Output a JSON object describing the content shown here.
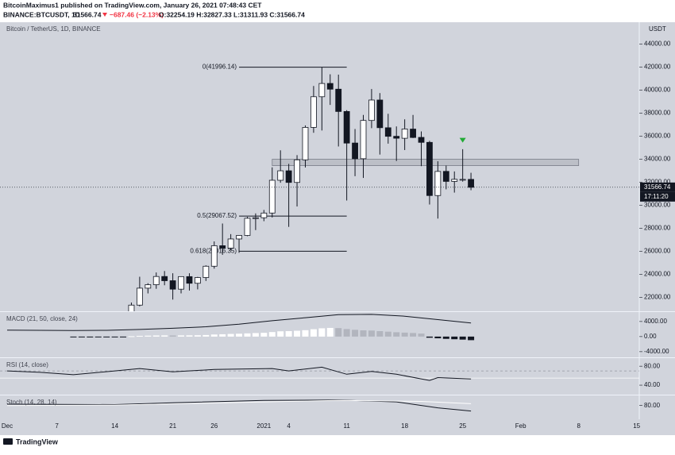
{
  "header": {
    "byline": "BitcoinMaximus1 published on TradingView.com, January 26, 2021 07:48:43 CET",
    "symbol": "BINANCE:BTCUSDT, 1D",
    "last": "31566.74",
    "change": "−687.46 (−2.13%)",
    "ohlc": "O:32254.19 H:32827.33 L:31311.93 C:31566.74"
  },
  "footer": {
    "brand": "TradingView"
  },
  "chart_data": [
    {
      "type": "candlestick",
      "title": "Bitcoin / TetherUS, 1D, BINANCE",
      "y_unit": "USDT",
      "up_color": "#ffffff",
      "down_color": "#131722",
      "x": [
        "2020-12-16",
        "2020-12-17",
        "2020-12-18",
        "2020-12-19",
        "2020-12-20",
        "2020-12-21",
        "2020-12-22",
        "2020-12-23",
        "2020-12-24",
        "2020-12-25",
        "2020-12-26",
        "2020-12-27",
        "2020-12-28",
        "2020-12-29",
        "2020-12-30",
        "2020-12-31",
        "2021-01-01",
        "2021-01-02",
        "2021-01-03",
        "2021-01-04",
        "2021-01-05",
        "2021-01-06",
        "2021-01-07",
        "2021-01-08",
        "2021-01-09",
        "2021-01-10",
        "2021-01-11",
        "2021-01-12",
        "2021-01-13",
        "2021-01-14",
        "2021-01-15",
        "2021-01-16",
        "2021-01-17",
        "2021-01-18",
        "2021-01-19",
        "2021-01-20",
        "2021-01-21",
        "2021-01-22",
        "2021-01-23",
        "2021-01-24",
        "2021-01-25",
        "2021-01-26"
      ],
      "open": [
        19426,
        21335,
        22808,
        23107,
        23821,
        23455,
        22719,
        23810,
        23232,
        23729,
        24712,
        26493,
        26281,
        27079,
        27385,
        28875,
        28923,
        29331,
        32176,
        33000,
        31989,
        33950,
        36769,
        39432,
        40586,
        40088,
        38150,
        35410,
        34049,
        37371,
        39145,
        36737,
        35994,
        35824,
        36622,
        35901,
        35468,
        30851,
        32950,
        32078,
        32254,
        32254.19
      ],
      "high": [
        21560,
        23800,
        23238,
        24171,
        24295,
        24102,
        23837,
        24100,
        23789,
        24789,
        26867,
        28422,
        27500,
        27410,
        28999,
        29300,
        29600,
        33300,
        34778,
        33600,
        34360,
        36939,
        40365,
        41996.14,
        41380,
        41350,
        38264,
        36628,
        37850,
        40100,
        39747,
        37950,
        36852,
        37469,
        37850,
        36415,
        35600,
        33826,
        33456,
        32944,
        34875,
        32827.33
      ],
      "low": [
        19278,
        21230,
        22350,
        22750,
        23060,
        21815,
        22353,
        22600,
        22703,
        23433,
        24500,
        25700,
        26101,
        25880,
        27320,
        27850,
        28624,
        28946,
        31962,
        28130,
        29900,
        33288,
        36300,
        36500,
        38720,
        35111,
        30420,
        32531,
        32380,
        36701,
        34408,
        35357,
        33850,
        34800,
        35844,
        33400,
        30071,
        28850,
        31390,
        31106,
        32059,
        31311.93
      ],
      "close": [
        21335,
        22808,
        23107,
        23821,
        23455,
        22719,
        23810,
        23232,
        23729,
        24712,
        26493,
        26281,
        27079,
        27385,
        28875,
        28923,
        29331,
        32178,
        33000,
        31988,
        33949,
        36769,
        39432,
        40582,
        40088,
        38150,
        35404,
        34051,
        37371,
        39144,
        36742,
        35994,
        35828,
        36631,
        35891,
        35468,
        30850,
        32945,
        32078,
        32259,
        32254,
        31566.74
      ],
      "ylim": [
        20800,
        45900
      ],
      "yticks": [
        {
          "value": 22000,
          "label": "22000.00"
        },
        {
          "value": 24000,
          "label": "24000.00"
        },
        {
          "value": 26000,
          "label": "26000.00"
        },
        {
          "value": 28000,
          "label": "28000.00"
        },
        {
          "value": 30000,
          "label": "30000.00"
        },
        {
          "value": 32000,
          "label": "32000.00"
        },
        {
          "value": 34000,
          "label": "34000.00"
        },
        {
          "value": 36000,
          "label": "36000.00"
        },
        {
          "value": 38000,
          "label": "38000.00"
        },
        {
          "value": 40000,
          "label": "40000.00"
        },
        {
          "value": 42000,
          "label": "42000.00"
        },
        {
          "value": 44000,
          "label": "44000.00"
        }
      ],
      "last_price": {
        "value": 31566.74,
        "label": "31566.74"
      },
      "countdown": "17:11:20",
      "fib_x": [
        "2020-12-29",
        "2021-01-11"
      ],
      "fib_levels": [
        {
          "value": 41996.14,
          "label": "0(41996.14)"
        },
        {
          "value": 29067.52,
          "label": "0.5(29067.52)"
        },
        {
          "value": 26016.35,
          "label": "0.618(26016.35)"
        }
      ],
      "zone": {
        "x": [
          "2021-01-02",
          "2021-02-08"
        ],
        "y": [
          33450,
          34000
        ],
        "color": "#9598a1"
      },
      "signal": {
        "x": "2021-01-25",
        "value": 35650,
        "color": "#22ab36"
      },
      "xticks": [
        {
          "value": "2020-12-01",
          "label": "Dec"
        },
        {
          "value": "2020-12-07",
          "label": "7"
        },
        {
          "value": "2020-12-14",
          "label": "14"
        },
        {
          "value": "2020-12-21",
          "label": "21"
        },
        {
          "value": "2020-12-26",
          "label": "26"
        },
        {
          "value": "2021-01-01",
          "label": "2021"
        },
        {
          "value": "2021-01-04",
          "label": "4"
        },
        {
          "value": "2021-01-11",
          "label": "11"
        },
        {
          "value": "2021-01-18",
          "label": "18"
        },
        {
          "value": "2021-01-25",
          "label": "25"
        },
        {
          "value": "2021-02-01",
          "label": "Feb"
        },
        {
          "value": "2021-02-08",
          "label": "8"
        },
        {
          "value": "2021-02-15",
          "label": "15"
        }
      ]
    },
    {
      "type": "macd",
      "title": "MACD (21, 50, close, 24)",
      "ylim": [
        -5500,
        6500
      ],
      "yticks": [
        {
          "value": 4000,
          "label": "4000.00"
        },
        {
          "value": 0,
          "label": "0.00"
        },
        {
          "value": -4000,
          "label": "-4000.00"
        }
      ],
      "histogram": {
        "colors": {
          "rising": "#ffffff",
          "falling": "#b2b5be",
          "negative": "#131722"
        },
        "x": [
          "2020-12-09",
          "2020-12-10",
          "2020-12-11",
          "2020-12-12",
          "2020-12-13",
          "2020-12-14",
          "2020-12-15",
          "2020-12-16",
          "2020-12-17",
          "2020-12-18",
          "2020-12-19",
          "2020-12-20",
          "2020-12-21",
          "2020-12-22",
          "2020-12-23",
          "2020-12-24",
          "2020-12-25",
          "2020-12-26",
          "2020-12-27",
          "2020-12-28",
          "2020-12-29",
          "2020-12-30",
          "2020-12-31",
          "2021-01-01",
          "2021-01-02",
          "2021-01-03",
          "2021-01-04",
          "2021-01-05",
          "2021-01-06",
          "2021-01-07",
          "2021-01-08",
          "2021-01-09",
          "2021-01-10",
          "2021-01-11",
          "2021-01-12",
          "2021-01-13",
          "2021-01-14",
          "2021-01-15",
          "2021-01-16",
          "2021-01-17",
          "2021-01-18",
          "2021-01-19",
          "2021-01-20",
          "2021-01-21",
          "2021-01-22",
          "2021-01-23",
          "2021-01-24",
          "2021-01-25",
          "2021-01-26"
        ],
        "values": [
          -150,
          -200,
          -220,
          -200,
          -180,
          -150,
          -80,
          100,
          200,
          250,
          300,
          320,
          300,
          320,
          330,
          360,
          420,
          550,
          620,
          700,
          760,
          850,
          930,
          1000,
          1200,
          1400,
          1450,
          1550,
          1700,
          1950,
          2200,
          2300,
          2250,
          2000,
          1800,
          1650,
          1600,
          1450,
          1300,
          1150,
          1050,
          950,
          800,
          -300,
          -450,
          -600,
          -700,
          -800,
          -950
        ]
      },
      "series": [
        {
          "color": "#131722",
          "x": [
            "2020-12-01",
            "2020-12-05",
            "2020-12-09",
            "2020-12-13",
            "2020-12-17",
            "2020-12-21",
            "2020-12-25",
            "2020-12-29",
            "2021-01-02",
            "2021-01-06",
            "2021-01-10",
            "2021-01-14",
            "2021-01-18",
            "2021-01-22",
            "2021-01-26"
          ],
          "values": [
            1700,
            1650,
            1600,
            1650,
            1900,
            2200,
            2600,
            3300,
            4200,
            5000,
            5800,
            5900,
            5400,
            4500,
            3600
          ]
        }
      ]
    },
    {
      "type": "rsi",
      "title": "RSI (14, close)",
      "ylim": [
        20,
        97
      ],
      "yticks": [
        {
          "value": 80,
          "label": "80.00"
        },
        {
          "value": 40,
          "label": "40.00"
        }
      ],
      "levels": [
        70,
        55
      ],
      "series": [
        {
          "color": "#131722",
          "x": [
            "2020-12-01",
            "2020-12-05",
            "2020-12-09",
            "2020-12-14",
            "2020-12-17",
            "2020-12-21",
            "2020-12-26",
            "2021-01-02",
            "2021-01-04",
            "2021-01-08",
            "2021-01-11",
            "2021-01-14",
            "2021-01-17",
            "2021-01-21",
            "2021-01-22",
            "2021-01-26"
          ],
          "values": [
            70,
            67,
            62,
            70,
            75,
            68,
            73,
            75,
            70,
            78,
            63,
            69,
            63,
            50,
            56,
            53
          ]
        }
      ]
    },
    {
      "type": "stoch",
      "title": "Stoch (14, 28, 14)",
      "ylim": [
        50,
        102
      ],
      "yticks": [
        {
          "value": 80,
          "label": "80.00"
        }
      ],
      "series": [
        {
          "color": "#131722",
          "x": [
            "2020-12-01",
            "2020-12-14",
            "2020-12-21",
            "2021-01-01",
            "2021-01-10",
            "2021-01-17",
            "2021-01-22",
            "2021-01-26"
          ],
          "values": [
            83,
            82,
            86,
            91,
            92,
            88,
            75,
            68
          ]
        },
        {
          "color": "#ffffff",
          "x": [
            "2020-12-01",
            "2020-12-14",
            "2021-01-01",
            "2021-01-10",
            "2021-01-20",
            "2021-01-26"
          ],
          "values": [
            80,
            81,
            88,
            91,
            89,
            84
          ]
        }
      ]
    }
  ]
}
